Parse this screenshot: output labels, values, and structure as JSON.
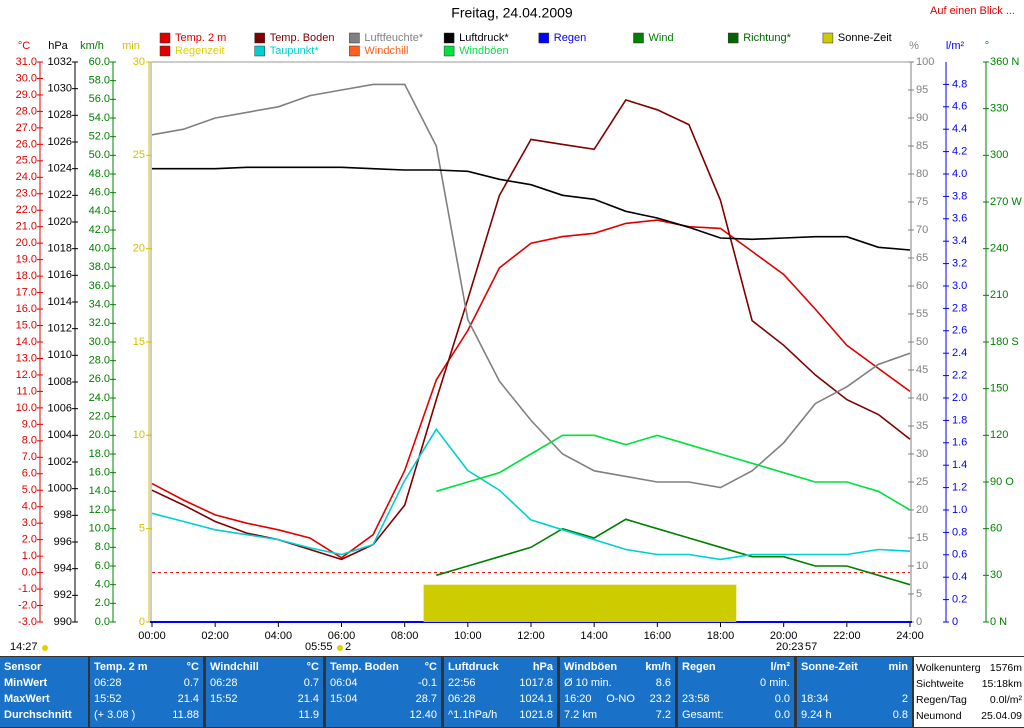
{
  "header": {
    "link": "Auf einen Blick ..."
  },
  "chart_data": {
    "type": "line",
    "title": "Freitag, 24.04.2009",
    "xlim": [
      0,
      24
    ],
    "xticks": [
      {
        "value": 0,
        "label": "00:00"
      },
      {
        "value": 2,
        "label": "02:00"
      },
      {
        "value": 4,
        "label": "04:00"
      },
      {
        "value": 6,
        "label": "06:00"
      },
      {
        "value": 8,
        "label": "08:00"
      },
      {
        "value": 10,
        "label": "10:00"
      },
      {
        "value": 12,
        "label": "12:00"
      },
      {
        "value": 14,
        "label": "14:00"
      },
      {
        "value": 16,
        "label": "16:00"
      },
      {
        "value": 18,
        "label": "18:00"
      },
      {
        "value": 20,
        "label": "20:00"
      },
      {
        "value": 22,
        "label": "22:00"
      },
      {
        "value": 24,
        "label": "24:00"
      }
    ],
    "x": [
      0,
      1,
      2,
      3,
      4,
      5,
      6,
      7,
      8,
      9,
      10,
      11,
      12,
      13,
      14,
      15,
      16,
      17,
      18,
      19,
      20,
      21,
      22,
      23,
      24
    ],
    "axes": [
      {
        "unit": "°C",
        "color": "#e00000",
        "lim": [
          -3,
          31
        ],
        "ticks": [
          {
            "value": 31,
            "label": "31.0"
          },
          {
            "value": 30,
            "label": "30.0"
          },
          {
            "value": 29,
            "label": "29.0"
          },
          {
            "value": 28,
            "label": "28.0"
          },
          {
            "value": 27,
            "label": "27.0"
          },
          {
            "value": 26,
            "label": "26.0"
          },
          {
            "value": 25,
            "label": "25.0"
          },
          {
            "value": 24,
            "label": "24.0"
          },
          {
            "value": 23,
            "label": "23.0"
          },
          {
            "value": 22,
            "label": "22.0"
          },
          {
            "value": 21,
            "label": "21.0"
          },
          {
            "value": 20,
            "label": "20.0"
          },
          {
            "value": 19,
            "label": "19.0"
          },
          {
            "value": 18,
            "label": "18.0"
          },
          {
            "value": 17,
            "label": "17.0"
          },
          {
            "value": 16,
            "label": "16.0"
          },
          {
            "value": 15,
            "label": "15.0"
          },
          {
            "value": 14,
            "label": "14.0"
          },
          {
            "value": 13,
            "label": "13.0"
          },
          {
            "value": 12,
            "label": "12.0"
          },
          {
            "value": 11,
            "label": "11.0"
          },
          {
            "value": 10,
            "label": "10.0"
          },
          {
            "value": 9,
            "label": "9.0"
          },
          {
            "value": 8,
            "label": "8.0"
          },
          {
            "value": 7,
            "label": "7.0"
          },
          {
            "value": 6,
            "label": "6.0"
          },
          {
            "value": 5,
            "label": "5.0"
          },
          {
            "value": 4,
            "label": "4.0"
          },
          {
            "value": 3,
            "label": "3.0"
          },
          {
            "value": 2,
            "label": "2.0"
          },
          {
            "value": 1,
            "label": "1.0"
          },
          {
            "value": 0,
            "label": "0.0"
          },
          {
            "value": -1,
            "label": "-1.0"
          },
          {
            "value": -2,
            "label": "-2.0"
          },
          {
            "value": -3,
            "label": "-3.0"
          }
        ]
      },
      {
        "unit": "hPa",
        "color": "#000000",
        "lim": [
          990,
          1032
        ],
        "ticks": [
          1032,
          1030,
          1028,
          1026,
          1024,
          1022,
          1020,
          1018,
          1016,
          1014,
          1012,
          1010,
          1008,
          1006,
          1004,
          1002,
          1000,
          998,
          996,
          994,
          992,
          990
        ]
      },
      {
        "unit": "km/h",
        "color": "#008000",
        "lim": [
          0,
          60
        ],
        "ticks": [
          {
            "value": 60,
            "label": "60.0"
          },
          {
            "value": 58,
            "label": "58.0"
          },
          {
            "value": 56,
            "label": "56.0"
          },
          {
            "value": 54,
            "label": "54.0"
          },
          {
            "value": 52,
            "label": "52.0"
          },
          {
            "value": 50,
            "label": "50.0"
          },
          {
            "value": 48,
            "label": "48.0"
          },
          {
            "value": 46,
            "label": "46.0"
          },
          {
            "value": 44,
            "label": "44.0"
          },
          {
            "value": 42,
            "label": "42.0"
          },
          {
            "value": 40,
            "label": "40.0"
          },
          {
            "value": 38,
            "label": "38.0"
          },
          {
            "value": 36,
            "label": "36.0"
          },
          {
            "value": 34,
            "label": "34.0"
          },
          {
            "value": 32,
            "label": "32.0"
          },
          {
            "value": 30,
            "label": "30.0"
          },
          {
            "value": 28,
            "label": "28.0"
          },
          {
            "value": 26,
            "label": "26.0"
          },
          {
            "value": 24,
            "label": "24.0"
          },
          {
            "value": 22,
            "label": "22.0"
          },
          {
            "value": 20,
            "label": "20.0"
          },
          {
            "value": 18,
            "label": "18.0"
          },
          {
            "value": 16,
            "label": "16.0"
          },
          {
            "value": 14,
            "label": "14.0"
          },
          {
            "value": 12,
            "label": "12.0"
          },
          {
            "value": 10,
            "label": "10.0"
          },
          {
            "value": 8,
            "label": "8.0"
          },
          {
            "value": 6,
            "label": "6.0"
          },
          {
            "value": 4,
            "label": "4.0"
          },
          {
            "value": 2,
            "label": "2.0"
          },
          {
            "value": 0,
            "label": "0.0"
          }
        ]
      },
      {
        "unit": "min",
        "color": "#d4c000",
        "lim": [
          0,
          30
        ],
        "ticks": [
          30,
          25,
          20,
          15,
          10,
          5,
          0
        ]
      },
      {
        "unit": "%",
        "color": "#808080",
        "lim": [
          0,
          100
        ],
        "ticks": [
          100,
          95,
          90,
          85,
          80,
          75,
          70,
          65,
          60,
          55,
          50,
          45,
          40,
          35,
          30,
          25,
          20,
          15,
          10,
          5,
          0
        ]
      },
      {
        "unit": "l/m²",
        "color": "#0000ff",
        "lim": [
          0,
          5
        ],
        "ticks": [
          4.8,
          4.6,
          4.4,
          4.2,
          {
            "value": 4,
            "label": "4.0"
          },
          3.8,
          3.6,
          3.4,
          3.2,
          {
            "value": 3,
            "label": "3.0"
          },
          2.8,
          2.6,
          2.4,
          2.2,
          {
            "value": 2,
            "label": "2.0"
          },
          1.8,
          1.6,
          1.4,
          1.2,
          {
            "value": 1,
            "label": "1.0"
          },
          0.8,
          0.6,
          0.4,
          0.2,
          0
        ]
      },
      {
        "unit": "°",
        "color": "#008000",
        "lim": [
          0,
          360
        ],
        "ticks": [
          {
            "value": 360,
            "label": "360 N"
          },
          330,
          300,
          {
            "value": 270,
            "label": "270 W"
          },
          240,
          210,
          {
            "value": 180,
            "label": "180 S"
          },
          150,
          120,
          {
            "value": 90,
            "label": "90 O"
          },
          60,
          30,
          {
            "value": 0,
            "label": "0 N"
          }
        ]
      }
    ],
    "series": [
      {
        "name": "Temp. 2 m",
        "color": "#e00000",
        "axis": "°C",
        "values": [
          5.4,
          4.4,
          3.5,
          3.0,
          2.6,
          2.1,
          0.9,
          2.3,
          6.2,
          11.7,
          14.7,
          18.5,
          20.0,
          20.4,
          20.6,
          21.2,
          21.4,
          21.0,
          20.9,
          19.5,
          18.1,
          16.0,
          13.8,
          12.4,
          11.0
        ]
      },
      {
        "name": "Temp. Boden",
        "color": "#800000",
        "axis": "°C",
        "values": [
          5.0,
          4.1,
          3.1,
          2.4,
          2.0,
          1.4,
          0.8,
          1.7,
          4.1,
          10.5,
          16.6,
          22.9,
          26.3,
          26.0,
          25.7,
          28.7,
          28.1,
          27.2,
          22.6,
          15.3,
          13.8,
          12.0,
          10.5,
          9.6,
          8.1
        ]
      },
      {
        "name": "Luftfeuchte*",
        "color": "#808080",
        "axis": "%",
        "values": [
          87,
          88,
          90,
          91,
          92,
          94,
          95,
          96,
          96,
          85,
          54,
          43,
          36,
          30,
          27,
          26,
          25,
          25,
          24,
          27,
          32,
          39,
          42,
          46,
          48
        ]
      },
      {
        "name": "Luftdruck*",
        "color": "#000000",
        "axis": "hPa",
        "values": [
          1024.0,
          1024.0,
          1024.0,
          1024.1,
          1024.1,
          1024.1,
          1024.1,
          1024.0,
          1023.9,
          1023.9,
          1023.8,
          1023.2,
          1022.8,
          1022.0,
          1021.7,
          1020.8,
          1020.3,
          1019.6,
          1018.8,
          1018.7,
          1018.8,
          1018.9,
          1018.9,
          1018.1,
          1017.9
        ]
      },
      {
        "name": "Regen",
        "color": "#0000ff"
      },
      {
        "name": "Wind",
        "color": "#008000",
        "axis": "km/h",
        "values": [
          null,
          null,
          null,
          null,
          null,
          null,
          null,
          null,
          null,
          5,
          6,
          7,
          8,
          10,
          9,
          11,
          10,
          9,
          8,
          7,
          7,
          6,
          6,
          5,
          4
        ]
      },
      {
        "name": "Richtung*",
        "color": "#006400"
      },
      {
        "name": "Sonne-Zeit",
        "color": "#cccc00",
        "text_color": "#000000",
        "axis": "min",
        "bar": {
          "x": [
            8.6,
            18.5
          ],
          "value": 2
        }
      },
      {
        "name": "Regenzeit",
        "color": "#e00000",
        "text_color": "#e0d000"
      },
      {
        "name": "Taupunkt*",
        "color": "#00d0d0",
        "axis": "°C",
        "values": [
          3.6,
          3.1,
          2.6,
          2.3,
          2.0,
          1.5,
          1.1,
          1.7,
          5.6,
          8.7,
          6.2,
          5.0,
          3.2,
          2.6,
          2.0,
          1.4,
          1.1,
          1.1,
          0.8,
          1.1,
          1.1,
          1.1,
          1.1,
          1.4,
          1.3
        ]
      },
      {
        "name": "Windchill",
        "color": "#ff6020"
      },
      {
        "name": "Windböen",
        "color": "#00e040",
        "axis": "km/h",
        "values": [
          null,
          null,
          null,
          null,
          null,
          null,
          null,
          null,
          null,
          14,
          15,
          16,
          18,
          20,
          20,
          19,
          20,
          19,
          18,
          17,
          16,
          15,
          15,
          14,
          12
        ]
      }
    ],
    "reference_line": {
      "axis": "°C",
      "value": 0,
      "color": "#e00000"
    },
    "grid": false,
    "annotations": [
      "14:27",
      "05:55",
      "2",
      "20:23",
      "57"
    ]
  },
  "table": {
    "panels": [
      {
        "title": "Sensor",
        "rows": [
          [
            "MinWert"
          ],
          [
            "MaxWert"
          ],
          [
            "Durchschnitt"
          ]
        ]
      },
      {
        "title": "Temp. 2 m",
        "unit": "°C",
        "rows": [
          [
            "06:28",
            "0.7"
          ],
          [
            "15:52",
            "21.4"
          ],
          [
            "(+ 3.08 )",
            "11.88"
          ]
        ]
      },
      {
        "title": "Windchill",
        "unit": "°C",
        "rows": [
          [
            "06:28",
            "0.7"
          ],
          [
            "15:52",
            "21.4"
          ],
          [
            "11.9"
          ]
        ]
      },
      {
        "title": "Temp. Boden",
        "unit": "°C",
        "rows": [
          [
            "06:04",
            "-0.1"
          ],
          [
            "15:04",
            "28.7"
          ],
          [
            "12.40"
          ]
        ]
      },
      {
        "title": "Luftdruck",
        "unit": "hPa",
        "rows": [
          [
            "22:56",
            "1017.8"
          ],
          [
            "06:28",
            "1024.1"
          ],
          [
            "^1.1hPa/h",
            "1021.8"
          ]
        ]
      },
      {
        "title": "Windböen",
        "unit": "km/h",
        "rows": [
          [
            "Ø 10 min.",
            "8.6"
          ],
          [
            "16:20",
            "O-NO",
            "23.2"
          ],
          [
            "7.2 km",
            "7.2"
          ]
        ]
      },
      {
        "title": "Regen",
        "unit": "l/m²",
        "rows": [
          [
            "0 min."
          ],
          [
            "23:58",
            "0.0"
          ],
          [
            "Gesamt:",
            "0.0"
          ]
        ]
      },
      {
        "title": "Sonne-Zeit",
        "unit": "min",
        "rows": [
          [],
          [
            "18:34",
            "2"
          ],
          [
            "9.24 h",
            "0.8"
          ]
        ]
      }
    ],
    "info": [
      [
        "Wolkenunterg",
        "1576m"
      ],
      [
        "Sichtweite",
        "15:18km"
      ],
      [
        "Regen/Tag",
        "0.0l/m²"
      ],
      [
        "Neumond",
        "25.04.09"
      ]
    ]
  }
}
